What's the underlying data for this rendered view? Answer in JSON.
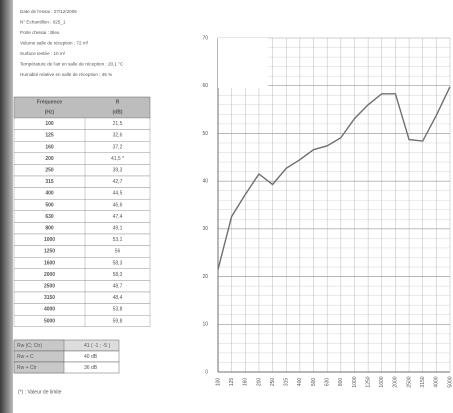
{
  "header": {
    "lines": [
      "Date de l'essai : 27/12/2006",
      "N° Echantillon : 025_1",
      "Porte d'essai : Bleu",
      "Volume salle de réception : 72 m³",
      "Surface testée : 10 m²",
      "Température de l'air en salle de réception : 20,1 °C",
      "Humidité relative en salle de réception : 45 %"
    ]
  },
  "table": {
    "header": [
      [
        "Fréquence",
        "(Hz)"
      ],
      [
        "R",
        "(dB)"
      ]
    ],
    "rows": [
      [
        "100",
        "21,5"
      ],
      [
        "125",
        "32,6"
      ],
      [
        "160",
        "37,2"
      ],
      [
        "200",
        "41,5 *"
      ],
      [
        "250",
        "39,3"
      ],
      [
        "315",
        "42,7"
      ],
      [
        "400",
        "44,5"
      ],
      [
        "500",
        "46,6"
      ],
      [
        "630",
        "47,4"
      ],
      [
        "800",
        "49,1"
      ],
      [
        "1000",
        "53,1"
      ],
      [
        "1250",
        "56"
      ],
      [
        "1600",
        "58,3"
      ],
      [
        "2000",
        "58,3"
      ],
      [
        "2500",
        "48,7"
      ],
      [
        "3150",
        "48,4"
      ],
      [
        "4000",
        "53,8"
      ],
      [
        "5000",
        "59,8"
      ]
    ]
  },
  "summary": {
    "rows": [
      [
        "Rw (C; Ctr)",
        "41 ( -1 ; -5 )"
      ],
      [
        "Rw + C",
        "40 dB"
      ],
      [
        "Rw + Ctr",
        "36 dB"
      ]
    ]
  },
  "footnote": "(*) : Valeur de limite",
  "chart_data": {
    "type": "line",
    "categories": [
      "100",
      "125",
      "160",
      "200",
      "250",
      "315",
      "400",
      "500",
      "630",
      "800",
      "1000",
      "1250",
      "1600",
      "2000",
      "2500",
      "3150",
      "4000",
      "5000"
    ],
    "series": [
      {
        "name": "R",
        "color": "#707070",
        "values": [
          21.5,
          32.6,
          37.2,
          41.5,
          39.3,
          42.7,
          44.5,
          46.6,
          47.4,
          49.1,
          53.1,
          56,
          58.3,
          58.3,
          48.7,
          48.4,
          53.8,
          59.8
        ]
      }
    ],
    "ylim": [
      0,
      70
    ],
    "yticks": [
      0,
      10,
      20,
      30,
      40,
      50,
      60,
      70
    ],
    "grid": true
  }
}
